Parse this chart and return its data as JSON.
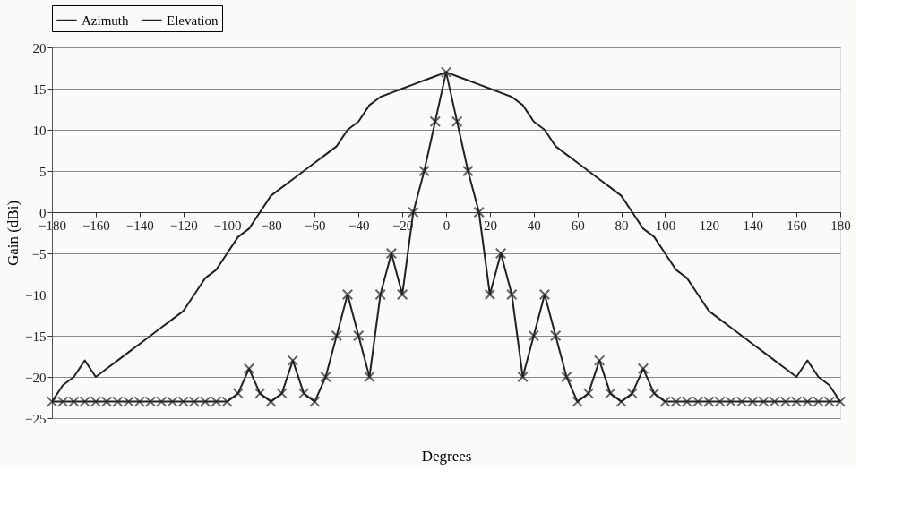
{
  "chart_data": {
    "type": "line",
    "xlabel": "Degrees",
    "ylabel": "Gain (dBi)",
    "x": [
      -180,
      -175,
      -170,
      -165,
      -160,
      -155,
      -150,
      -145,
      -140,
      -135,
      -130,
      -125,
      -120,
      -115,
      -110,
      -105,
      -100,
      -95,
      -90,
      -85,
      -80,
      -75,
      -70,
      -65,
      -60,
      -55,
      -50,
      -45,
      -40,
      -35,
      -30,
      -25,
      -20,
      -15,
      -10,
      -5,
      0,
      5,
      10,
      15,
      20,
      25,
      30,
      35,
      40,
      45,
      50,
      55,
      60,
      65,
      70,
      75,
      80,
      85,
      90,
      95,
      100,
      105,
      110,
      115,
      120,
      125,
      130,
      135,
      140,
      145,
      150,
      155,
      160,
      165,
      170,
      175,
      180
    ],
    "series": [
      {
        "name": "Azimuth",
        "color": "#222222",
        "marker": "none",
        "values": [
          -23,
          -21,
          -20,
          -18,
          -20,
          -19,
          -18,
          -17,
          -16,
          -15,
          -14,
          -13,
          -12,
          -10,
          -8,
          -7,
          -5,
          -3,
          -2,
          0,
          2,
          3,
          4,
          5,
          6,
          7,
          8,
          10,
          11,
          13,
          14,
          14.5,
          15,
          15.5,
          16,
          16.5,
          17,
          16.5,
          16,
          15.5,
          15,
          14.5,
          14,
          13,
          11,
          10,
          8,
          7,
          6,
          5,
          4,
          3,
          2,
          0,
          -2,
          -3,
          -5,
          -7,
          -8,
          -10,
          -12,
          -13,
          -14,
          -15,
          -16,
          -17,
          -18,
          -19,
          -20,
          -18,
          -20,
          -21,
          -23
        ]
      },
      {
        "name": "Elevation",
        "color": "#222222",
        "marker": "cross",
        "values": [
          -23,
          -23,
          -23,
          -23,
          -23,
          -23,
          -23,
          -23,
          -23,
          -23,
          -23,
          -23,
          -23,
          -23,
          -23,
          -23,
          -23,
          -22,
          -19,
          -22,
          -23,
          -22,
          -18,
          -22,
          -23,
          -20,
          -15,
          -10,
          -15,
          -20,
          -10,
          -5,
          -10,
          0,
          5,
          11,
          17,
          11,
          5,
          0,
          -10,
          -5,
          -10,
          -20,
          -15,
          -10,
          -15,
          -20,
          -23,
          -22,
          -18,
          -22,
          -23,
          -22,
          -19,
          -22,
          -23,
          -23,
          -23,
          -23,
          -23,
          -23,
          -23,
          -23,
          -23,
          -23,
          -23,
          -23,
          -23,
          -23,
          -23,
          -23,
          -23
        ]
      }
    ],
    "xlim": [
      -180,
      180
    ],
    "xticks": [
      -180,
      -160,
      -140,
      -120,
      -100,
      -80,
      -60,
      -40,
      -20,
      0,
      20,
      40,
      60,
      80,
      100,
      120,
      140,
      160,
      180
    ],
    "ylim": [
      -25,
      20
    ],
    "yticks": [
      -25,
      -20,
      -15,
      -10,
      -5,
      0,
      5,
      10,
      15,
      20
    ],
    "grid": "y",
    "legend": "top",
    "line_style": "solid"
  }
}
